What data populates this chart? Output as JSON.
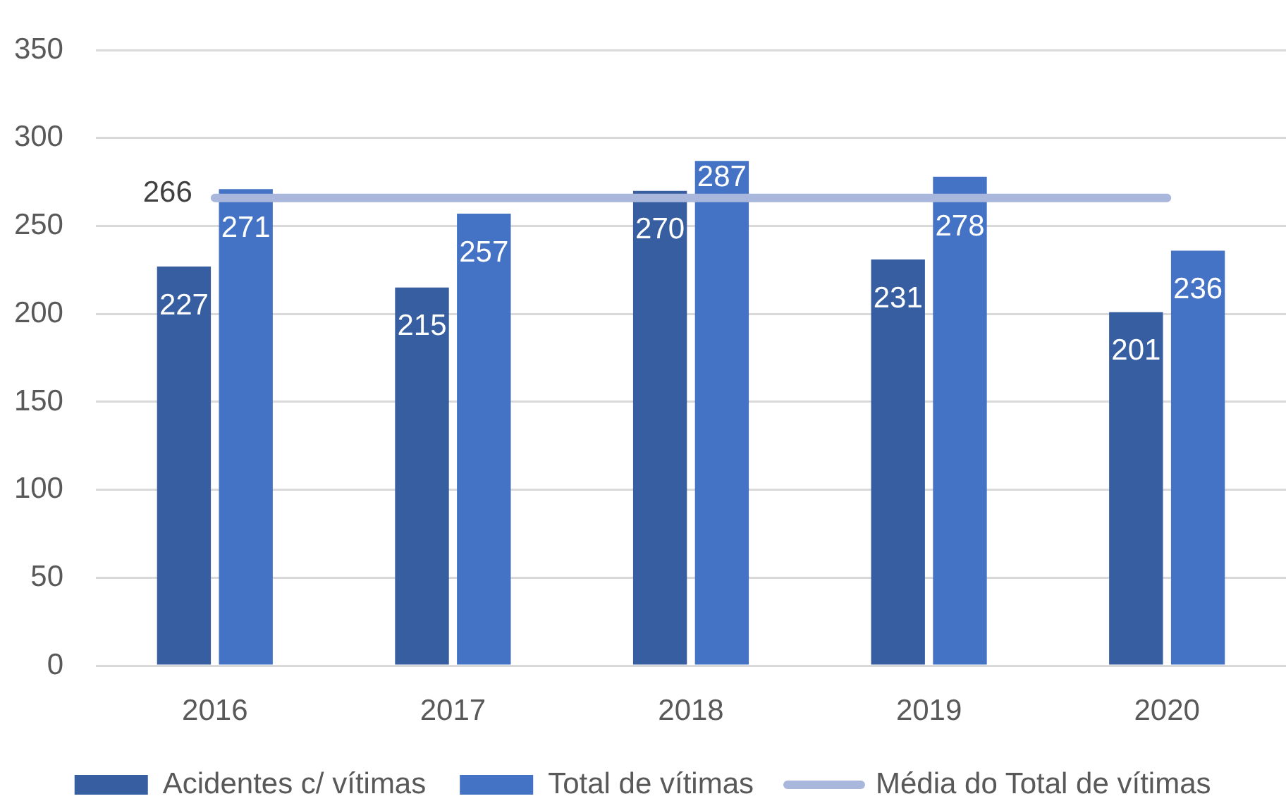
{
  "chart_data": {
    "type": "bar",
    "categories": [
      "2016",
      "2017",
      "2018",
      "2019",
      "2020"
    ],
    "series": [
      {
        "name": "Acidentes c/ vítimas",
        "color": "#365ea0",
        "values": [
          227,
          215,
          270,
          231,
          201
        ],
        "value_labels": [
          "227",
          "215",
          "270",
          "231",
          "201"
        ]
      },
      {
        "name": "Total de vítimas",
        "color": "#4472c4",
        "values": [
          271,
          257,
          287,
          278,
          236
        ],
        "value_labels": [
          "271",
          "257",
          "287",
          "278",
          "236"
        ]
      },
      {
        "name": "Média do Total de vítimas",
        "type": "line",
        "color": "#a9b7dc",
        "values": [
          266,
          266,
          266,
          266,
          266
        ],
        "value_labels": [
          "266",
          null,
          null,
          null,
          null
        ]
      }
    ],
    "ylim": [
      0,
      350
    ],
    "yticks": [
      0,
      50,
      100,
      150,
      200,
      250,
      300,
      350
    ],
    "grid": "y",
    "legend": "bottom",
    "marker": "none"
  }
}
